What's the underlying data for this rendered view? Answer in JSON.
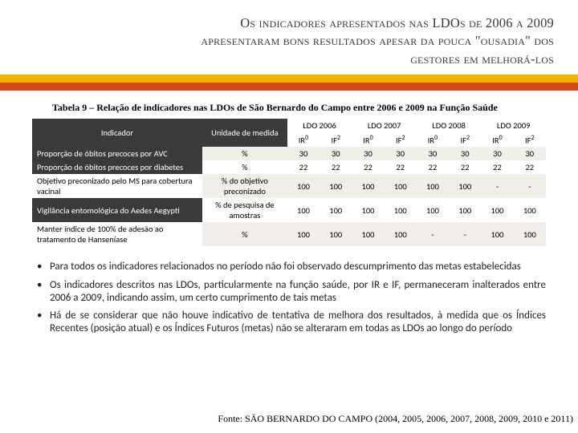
{
  "title": {
    "line1": "Os indicadores apresentados nas LDOs de 2006 a 2009",
    "line2": "apresentaram bons resultados apesar da pouca \"ousadia\" dos",
    "line3": "gestores em melhorá-los"
  },
  "stripe": {
    "yellow": "#f0b400",
    "orange": "#d84a1b"
  },
  "table": {
    "caption": "Tabela 9 – Relação de indicadores nas LDOs de São Bernardo do Campo entre 2006 e 2009 na Função Saúde",
    "col_indicador": "Indicador",
    "col_unidade": "Unidade de medida",
    "years": [
      "LDO 2006",
      "LDO 2007",
      "LDO 2008",
      "LDO 2009"
    ],
    "sub_ir": "IR",
    "sub_if": "IF",
    "rows": [
      {
        "ind": "Proporção de óbitos precoces por AVC",
        "un": "%",
        "vals": [
          "30",
          "30",
          "30",
          "30",
          "30",
          "30",
          "30",
          "30"
        ],
        "ind_style": "dark",
        "row_style": "light"
      },
      {
        "ind": "Proporção de óbitos precoces por diabetes",
        "un": "%",
        "vals": [
          "22",
          "22",
          "22",
          "22",
          "22",
          "22",
          "22",
          "22"
        ],
        "ind_style": "dark",
        "row_style": "white"
      },
      {
        "ind": "Objetivo preconizado pelo MS para cobertura vacinal",
        "un": "% do objetivo preconizado",
        "vals": [
          "100",
          "100",
          "100",
          "100",
          "100",
          "100",
          "-",
          "-"
        ],
        "ind_style": "white",
        "row_style": "light"
      },
      {
        "ind": "Vigilância entomológica do Aedes Aegypti",
        "un": "% de pesquisa de amostras",
        "vals": [
          "100",
          "100",
          "100",
          "100",
          "100",
          "100",
          "100",
          "100"
        ],
        "ind_style": "dark",
        "row_style": "white"
      },
      {
        "ind": "Manter índice de 100% de adesão ao tratamento de Hanseníase",
        "un": "%",
        "vals": [
          "100",
          "100",
          "100",
          "100",
          "-",
          "-",
          "100",
          "100"
        ],
        "ind_style": "white",
        "row_style": "light"
      }
    ]
  },
  "bullets": [
    "Para todos os indicadores relacionados no período não foi observado descumprimento das metas estabelecidas",
    "Os indicadores descritos nas LDOs, particularmente na função saúde, por IR e IF, permaneceram inalterados entre 2006 a 2009, indicando assim, um certo cumprimento de tais metas",
    "Há de se considerar que não houve indicativo de tentativa de melhora dos resultados, à medida que os Índices Recentes (posição atual) e os Índices Futuros (metas) não se alteraram em todas as LDOs ao longo do período"
  ],
  "source": "Fonte: SÃO BERNARDO DO CAMPO (2004, 2005, 2006, 2007, 2008, 2009, 2010 e 2011)"
}
